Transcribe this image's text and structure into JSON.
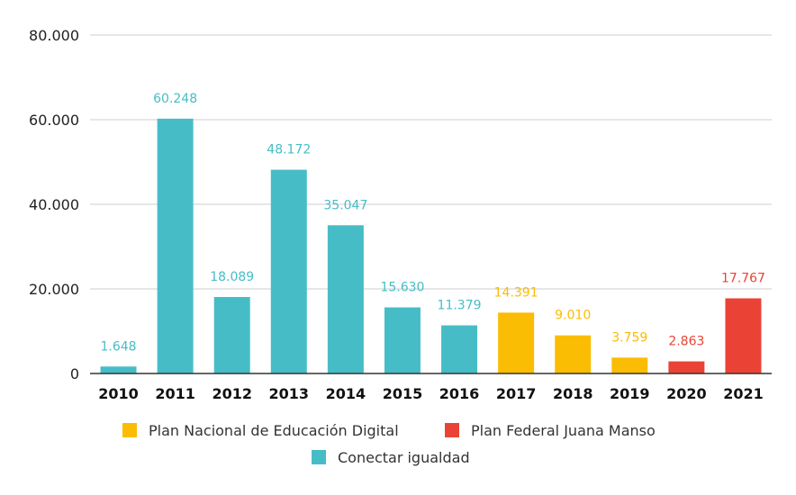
{
  "chart_data": {
    "type": "bar",
    "title": "",
    "xlabel": "",
    "ylabel": "",
    "ylim": [
      0,
      80000
    ],
    "yticks": [
      0,
      20000,
      40000,
      60000,
      80000
    ],
    "ytick_labels": [
      "0",
      "20.000",
      "40.000",
      "60.000",
      "80.000"
    ],
    "grid": true,
    "legend_position": "bottom",
    "categories": [
      "2010",
      "2011",
      "2012",
      "2013",
      "2014",
      "2015",
      "2016",
      "2017",
      "2018",
      "2019",
      "2020",
      "2021"
    ],
    "series": [
      {
        "name": "Conectar igualdad",
        "color": "#46BDC6",
        "values": [
          1648,
          60248,
          18089,
          48172,
          35047,
          15630,
          11379,
          null,
          null,
          null,
          null,
          null
        ],
        "labels": [
          "1.648",
          "60.248",
          "18.089",
          "48.172",
          "35.047",
          "15.630",
          "11.379",
          null,
          null,
          null,
          null,
          null
        ]
      },
      {
        "name": "Plan Nacional de Educación Digital",
        "color": "#FBBC04",
        "values": [
          null,
          null,
          null,
          null,
          null,
          null,
          null,
          14391,
          9010,
          3759,
          null,
          null
        ],
        "labels": [
          null,
          null,
          null,
          null,
          null,
          null,
          null,
          "14.391",
          "9.010",
          "3.759",
          null,
          null
        ]
      },
      {
        "name": "Plan Federal Juana Manso",
        "color": "#EA4335",
        "values": [
          null,
          null,
          null,
          null,
          null,
          null,
          null,
          null,
          null,
          null,
          2863,
          17767
        ],
        "labels": [
          null,
          null,
          null,
          null,
          null,
          null,
          null,
          null,
          null,
          null,
          "2.863",
          "17.767"
        ]
      }
    ],
    "legend_order": [
      1,
      2,
      0
    ]
  }
}
